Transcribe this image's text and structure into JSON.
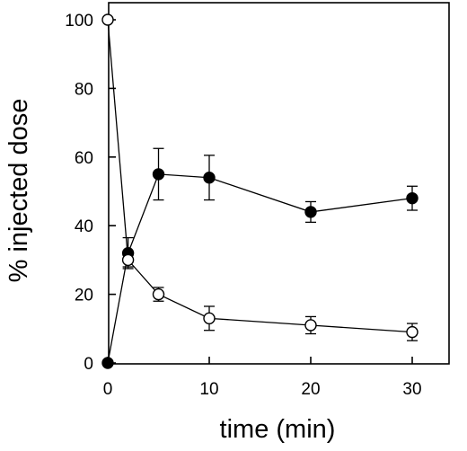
{
  "chart_data": {
    "type": "line",
    "title": "",
    "xlabel": "time (min)",
    "ylabel": "% injected dose",
    "xlim": [
      0,
      35
    ],
    "ylim": [
      0,
      100
    ],
    "x_ticks": [
      0,
      10,
      20,
      30
    ],
    "y_ticks": [
      0,
      20,
      40,
      60,
      80,
      100
    ],
    "grid": false,
    "legend": "none",
    "series": [
      {
        "marker": "filled-circle",
        "color": "#000000",
        "x": [
          0,
          2,
          5,
          10,
          20,
          30
        ],
        "y": [
          0,
          32,
          55,
          54,
          44,
          48
        ],
        "err": [
          0,
          4.5,
          7.5,
          6.5,
          3,
          3.5
        ]
      },
      {
        "marker": "open-circle",
        "color": "#000000",
        "x": [
          0,
          2,
          5,
          10,
          20,
          30
        ],
        "y": [
          100,
          30,
          20,
          13,
          11,
          9
        ],
        "err": [
          0,
          2,
          2,
          3.5,
          2.5,
          2.5
        ]
      }
    ]
  }
}
